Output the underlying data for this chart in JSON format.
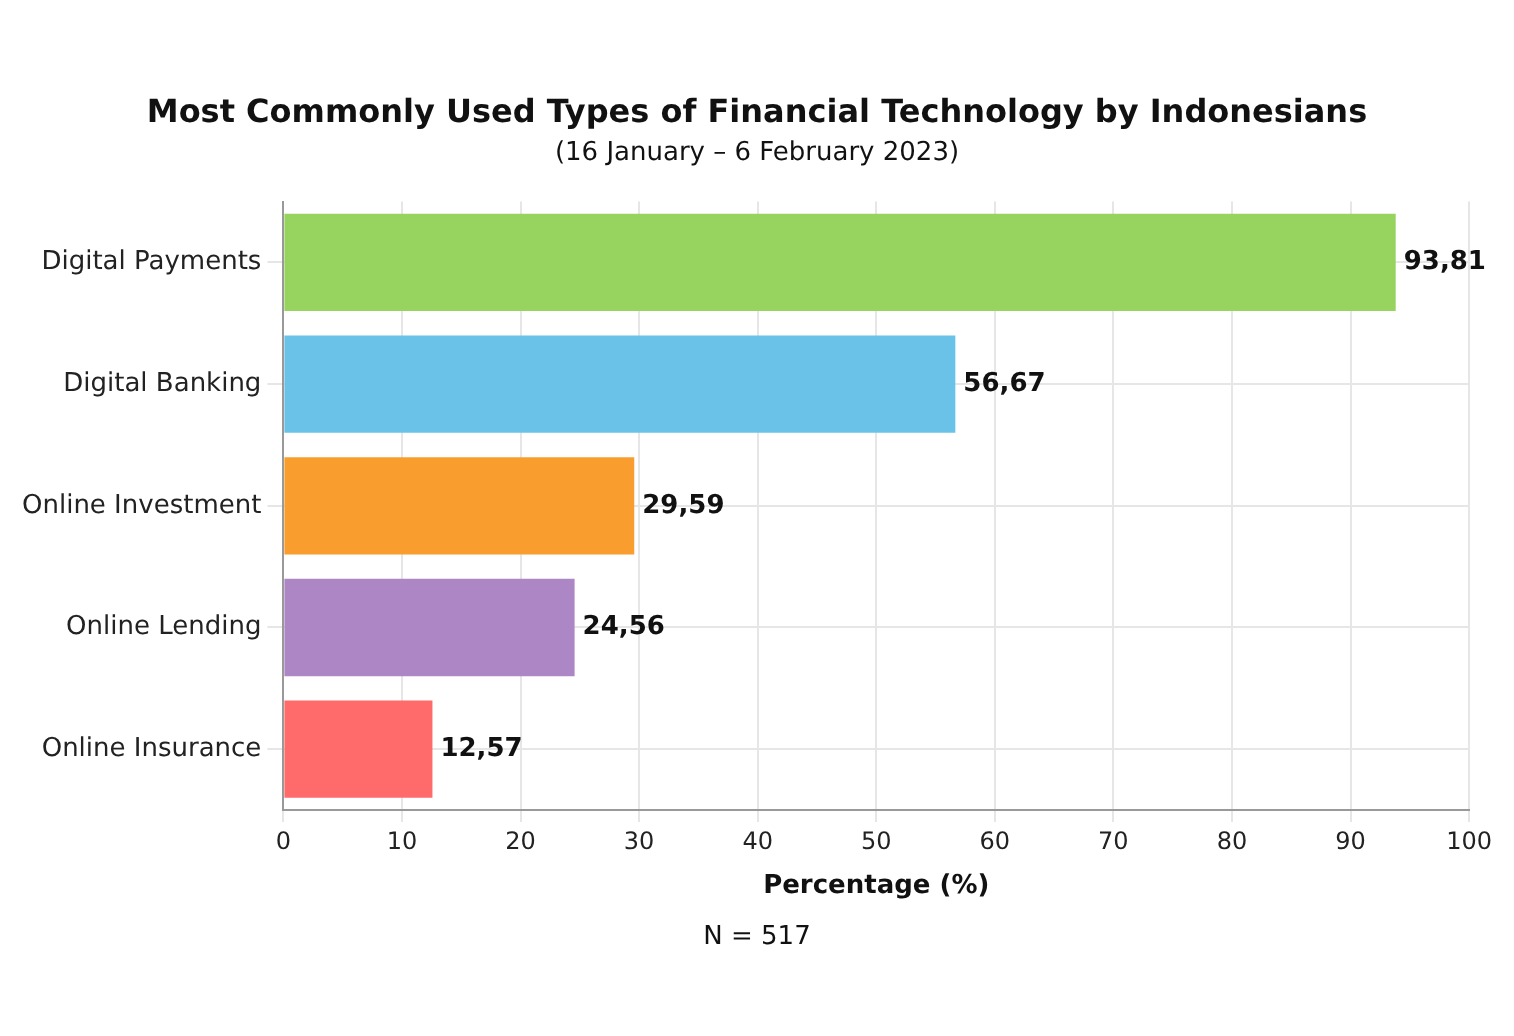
{
  "chart_data": {
    "type": "bar",
    "orientation": "horizontal",
    "title": "Most Commonly Used Types of Financial Technology by Indonesians",
    "subtitle": "(16 January – 6 February 2023)",
    "xlabel": "Percentage (%)",
    "categories": [
      "Digital Payments",
      "Digital Banking",
      "Online Investment",
      "Online Lending",
      "Online Insurance"
    ],
    "values": [
      93.81,
      56.67,
      29.59,
      24.56,
      12.57
    ],
    "value_labels": [
      "93,81",
      "56,67",
      "29,59",
      "24,56",
      "12,57"
    ],
    "colors": [
      "#96d35f",
      "#6ac2e8",
      "#f99e2e",
      "#ad86c6",
      "#ff6b6b"
    ],
    "xlim": [
      0,
      100
    ],
    "xticks": [
      0,
      10,
      20,
      30,
      40,
      50,
      60,
      70,
      80,
      90,
      100
    ],
    "grid": true,
    "legend": false,
    "annotations": [
      "N = 517"
    ]
  }
}
